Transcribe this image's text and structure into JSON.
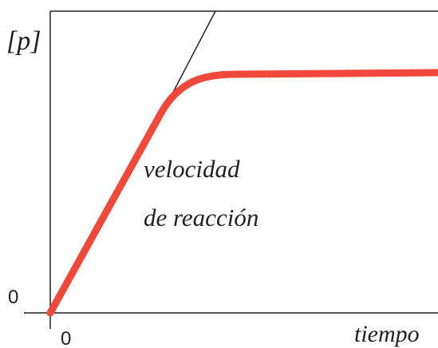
{
  "y_axis_label": "[p]",
  "y_origin_label": "0",
  "x_origin_label": "0",
  "x_axis_label": "tiempo",
  "annotation": {
    "lines": [
      "velocidad",
      "de reacción"
    ]
  }
}
